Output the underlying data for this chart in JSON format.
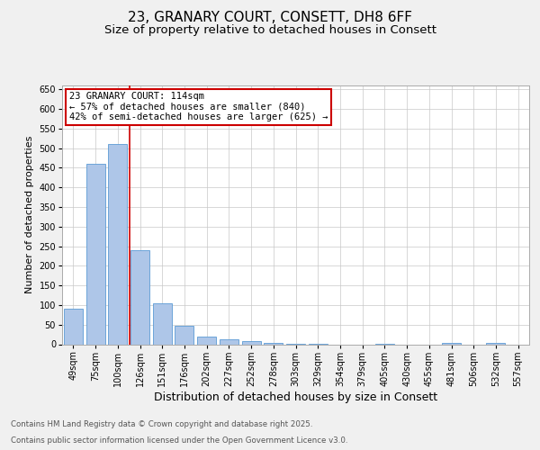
{
  "title1": "23, GRANARY COURT, CONSETT, DH8 6FF",
  "title2": "Size of property relative to detached houses in Consett",
  "xlabel": "Distribution of detached houses by size in Consett",
  "ylabel": "Number of detached properties",
  "categories": [
    "49sqm",
    "75sqm",
    "100sqm",
    "126sqm",
    "151sqm",
    "176sqm",
    "202sqm",
    "227sqm",
    "252sqm",
    "278sqm",
    "303sqm",
    "329sqm",
    "354sqm",
    "379sqm",
    "405sqm",
    "430sqm",
    "455sqm",
    "481sqm",
    "506sqm",
    "532sqm",
    "557sqm"
  ],
  "values": [
    90,
    460,
    510,
    240,
    105,
    47,
    19,
    13,
    7,
    4,
    2,
    1,
    0,
    0,
    2,
    0,
    0,
    3,
    0,
    4,
    0
  ],
  "bar_color": "#aec6e8",
  "bar_edge_color": "#5b9bd5",
  "background_color": "#f0f0f0",
  "plot_bg_color": "#ffffff",
  "grid_color": "#c8c8c8",
  "annotation_text": "23 GRANARY COURT: 114sqm\n← 57% of detached houses are smaller (840)\n42% of semi-detached houses are larger (625) →",
  "annotation_box_color": "#ffffff",
  "annotation_box_edge": "#cc0000",
  "ylim": [
    0,
    660
  ],
  "yticks": [
    0,
    50,
    100,
    150,
    200,
    250,
    300,
    350,
    400,
    450,
    500,
    550,
    600,
    650
  ],
  "footer1": "Contains HM Land Registry data © Crown copyright and database right 2025.",
  "footer2": "Contains public sector information licensed under the Open Government Licence v3.0.",
  "title_fontsize": 11,
  "subtitle_fontsize": 9.5,
  "tick_fontsize": 7,
  "label_fontsize": 9,
  "ylabel_fontsize": 8
}
